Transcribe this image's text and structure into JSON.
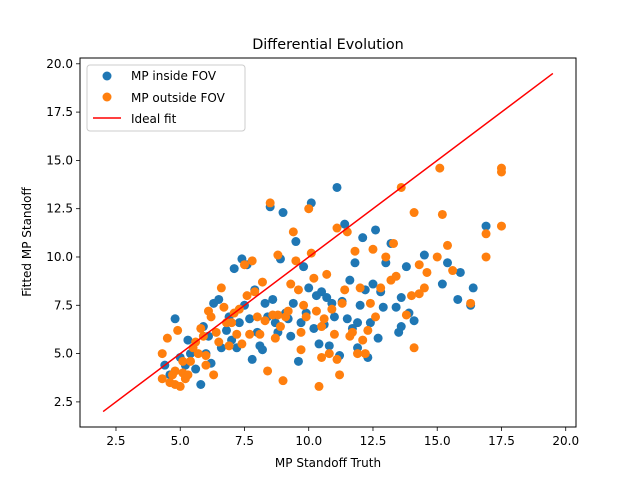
{
  "chart_data": {
    "type": "scatter",
    "title": "Differential Evolution",
    "xlabel": "MP Standoff Truth",
    "ylabel": "Fitted MP Standoff",
    "xlim": [
      1.1,
      20.4
    ],
    "ylim": [
      1.2,
      20.3
    ],
    "xticks": [
      "2.5",
      "5.0",
      "7.5",
      "10.0",
      "12.5",
      "15.0",
      "17.5",
      "20.0"
    ],
    "yticks": [
      "2.5",
      "5.0",
      "7.5",
      "10.0",
      "12.5",
      "15.0",
      "17.5",
      "20.0"
    ],
    "grid": false,
    "legend_position": "top-left",
    "legend": [
      "MP inside FOV",
      "MP outside FOV",
      "Ideal fit"
    ],
    "colors": {
      "inside": "#1f77b4",
      "outside": "#ff7f0e",
      "ideal": "#ff0000"
    },
    "ideal_fit": {
      "x": [
        2.0,
        19.5
      ],
      "y": [
        2.0,
        19.5
      ]
    },
    "series": [
      {
        "name": "MP inside FOV",
        "points": [
          [
            4.8,
            6.8
          ],
          [
            4.6,
            3.9
          ],
          [
            5.0,
            4.8
          ],
          [
            5.2,
            4.4
          ],
          [
            5.4,
            5.0
          ],
          [
            5.6,
            4.2
          ],
          [
            5.8,
            3.4
          ],
          [
            5.9,
            6.4
          ],
          [
            6.0,
            5.0
          ],
          [
            6.2,
            4.5
          ],
          [
            6.3,
            7.6
          ],
          [
            6.5,
            7.8
          ],
          [
            6.6,
            5.3
          ],
          [
            6.8,
            6.2
          ],
          [
            6.9,
            6.9
          ],
          [
            7.0,
            5.7
          ],
          [
            7.1,
            9.4
          ],
          [
            7.2,
            5.3
          ],
          [
            7.3,
            6.6
          ],
          [
            7.4,
            9.9
          ],
          [
            7.5,
            7.5
          ],
          [
            7.6,
            9.6
          ],
          [
            7.7,
            6.8
          ],
          [
            7.8,
            4.7
          ],
          [
            7.9,
            8.3
          ],
          [
            8.0,
            6.1
          ],
          [
            8.1,
            5.4
          ],
          [
            8.3,
            7.6
          ],
          [
            8.4,
            6.9
          ],
          [
            8.5,
            12.6
          ],
          [
            8.6,
            7.8
          ],
          [
            8.7,
            6.6
          ],
          [
            8.8,
            6.1
          ],
          [
            8.9,
            9.9
          ],
          [
            9.0,
            12.3
          ],
          [
            9.1,
            7.1
          ],
          [
            9.2,
            6.8
          ],
          [
            9.4,
            7.6
          ],
          [
            9.5,
            10.8
          ],
          [
            9.6,
            4.6
          ],
          [
            9.7,
            6.6
          ],
          [
            9.8,
            9.5
          ],
          [
            9.9,
            7.1
          ],
          [
            10.0,
            8.4
          ],
          [
            10.1,
            12.8
          ],
          [
            10.2,
            6.3
          ],
          [
            10.3,
            8.0
          ],
          [
            10.4,
            5.5
          ],
          [
            10.5,
            8.2
          ],
          [
            10.6,
            6.5
          ],
          [
            10.8,
            5.4
          ],
          [
            10.9,
            7.6
          ],
          [
            11.0,
            6.9
          ],
          [
            11.1,
            13.6
          ],
          [
            11.2,
            4.9
          ],
          [
            11.3,
            7.7
          ],
          [
            11.4,
            11.7
          ],
          [
            11.5,
            6.8
          ],
          [
            11.6,
            8.8
          ],
          [
            11.7,
            6.3
          ],
          [
            11.8,
            9.7
          ],
          [
            11.9,
            5.3
          ],
          [
            12.0,
            7.5
          ],
          [
            12.1,
            11.0
          ],
          [
            12.2,
            8.3
          ],
          [
            12.3,
            4.8
          ],
          [
            12.4,
            6.6
          ],
          [
            12.5,
            8.6
          ],
          [
            12.6,
            11.4
          ],
          [
            12.7,
            5.8
          ],
          [
            12.8,
            8.2
          ],
          [
            13.0,
            9.7
          ],
          [
            13.2,
            10.7
          ],
          [
            13.4,
            7.4
          ],
          [
            13.5,
            6.1
          ],
          [
            13.6,
            7.9
          ],
          [
            13.8,
            9.5
          ],
          [
            13.9,
            7.1
          ],
          [
            14.1,
            6.7
          ],
          [
            14.5,
            10.1
          ],
          [
            15.2,
            8.6
          ],
          [
            15.4,
            9.7
          ],
          [
            15.8,
            7.8
          ],
          [
            15.9,
            9.2
          ],
          [
            16.3,
            7.5
          ],
          [
            16.4,
            8.4
          ],
          [
            16.9,
            11.6
          ],
          [
            4.4,
            4.4
          ],
          [
            5.3,
            5.7
          ],
          [
            6.1,
            5.9
          ],
          [
            8.2,
            5.2
          ],
          [
            9.3,
            5.9
          ],
          [
            10.7,
            7.9
          ],
          [
            11.9,
            6.6
          ],
          [
            12.9,
            7.4
          ],
          [
            13.6,
            6.4
          ]
        ]
      },
      {
        "name": "MP outside FOV",
        "points": [
          [
            4.3,
            5.0
          ],
          [
            4.3,
            3.7
          ],
          [
            4.5,
            5.8
          ],
          [
            4.6,
            3.5
          ],
          [
            4.7,
            3.9
          ],
          [
            4.8,
            4.1
          ],
          [
            4.8,
            3.4
          ],
          [
            4.9,
            6.2
          ],
          [
            5.0,
            3.3
          ],
          [
            5.1,
            4.6
          ],
          [
            5.2,
            3.7
          ],
          [
            5.3,
            3.9
          ],
          [
            5.4,
            4.6
          ],
          [
            5.5,
            5.3
          ],
          [
            5.6,
            5.6
          ],
          [
            5.7,
            5.0
          ],
          [
            5.8,
            6.3
          ],
          [
            5.9,
            5.9
          ],
          [
            6.0,
            4.4
          ],
          [
            6.1,
            7.2
          ],
          [
            6.2,
            6.9
          ],
          [
            6.3,
            3.9
          ],
          [
            6.4,
            6.1
          ],
          [
            6.5,
            5.6
          ],
          [
            6.6,
            8.4
          ],
          [
            6.7,
            7.4
          ],
          [
            6.8,
            6.6
          ],
          [
            6.9,
            5.4
          ],
          [
            7.0,
            6.6
          ],
          [
            7.1,
            7.1
          ],
          [
            7.2,
            6.0
          ],
          [
            7.3,
            7.3
          ],
          [
            7.5,
            9.6
          ],
          [
            7.6,
            8.0
          ],
          [
            7.7,
            6.0
          ],
          [
            7.8,
            9.8
          ],
          [
            7.9,
            8.2
          ],
          [
            8.0,
            6.9
          ],
          [
            8.1,
            6.0
          ],
          [
            8.2,
            8.7
          ],
          [
            8.3,
            6.7
          ],
          [
            8.4,
            4.1
          ],
          [
            8.5,
            12.8
          ],
          [
            8.6,
            7.0
          ],
          [
            8.7,
            5.8
          ],
          [
            8.8,
            10.1
          ],
          [
            8.9,
            6.4
          ],
          [
            9.0,
            3.6
          ],
          [
            9.1,
            6.9
          ],
          [
            9.2,
            7.2
          ],
          [
            9.3,
            8.6
          ],
          [
            9.4,
            11.3
          ],
          [
            9.5,
            9.8
          ],
          [
            9.6,
            8.3
          ],
          [
            9.7,
            5.2
          ],
          [
            9.8,
            7.5
          ],
          [
            9.9,
            6.9
          ],
          [
            10.0,
            12.5
          ],
          [
            10.1,
            10.2
          ],
          [
            10.2,
            8.9
          ],
          [
            10.3,
            7.2
          ],
          [
            10.4,
            3.3
          ],
          [
            10.5,
            6.4
          ],
          [
            10.6,
            6.8
          ],
          [
            10.7,
            9.1
          ],
          [
            10.8,
            5.0
          ],
          [
            10.9,
            7.3
          ],
          [
            11.0,
            6.0
          ],
          [
            11.1,
            11.5
          ],
          [
            11.2,
            3.9
          ],
          [
            11.3,
            7.6
          ],
          [
            11.4,
            8.3
          ],
          [
            11.5,
            11.3
          ],
          [
            11.6,
            5.9
          ],
          [
            11.7,
            6.1
          ],
          [
            11.8,
            10.3
          ],
          [
            11.9,
            5.0
          ],
          [
            12.0,
            8.4
          ],
          [
            12.1,
            5.7
          ],
          [
            12.3,
            6.2
          ],
          [
            12.4,
            7.6
          ],
          [
            12.5,
            10.4
          ],
          [
            12.6,
            6.9
          ],
          [
            12.8,
            8.4
          ],
          [
            13.0,
            10.0
          ],
          [
            13.2,
            8.8
          ],
          [
            13.3,
            10.7
          ],
          [
            13.6,
            13.6
          ],
          [
            13.8,
            7.0
          ],
          [
            14.0,
            8.0
          ],
          [
            14.1,
            12.3
          ],
          [
            14.1,
            5.3
          ],
          [
            14.3,
            9.6
          ],
          [
            14.5,
            8.4
          ],
          [
            14.6,
            9.2
          ],
          [
            15.0,
            10.0
          ],
          [
            15.1,
            14.6
          ],
          [
            15.2,
            12.2
          ],
          [
            15.4,
            10.6
          ],
          [
            15.6,
            9.3
          ],
          [
            16.3,
            7.6
          ],
          [
            16.9,
            11.2
          ],
          [
            16.9,
            10.0
          ],
          [
            17.5,
            14.6
          ],
          [
            17.5,
            14.4
          ],
          [
            17.5,
            11.6
          ],
          [
            5.1,
            4.0
          ],
          [
            6.0,
            4.9
          ],
          [
            7.4,
            5.5
          ],
          [
            8.8,
            7.0
          ],
          [
            9.7,
            6.1
          ],
          [
            10.5,
            4.8
          ],
          [
            11.1,
            4.7
          ],
          [
            12.2,
            5.0
          ],
          [
            13.4,
            9.0
          ],
          [
            14.3,
            8.1
          ]
        ]
      }
    ]
  }
}
